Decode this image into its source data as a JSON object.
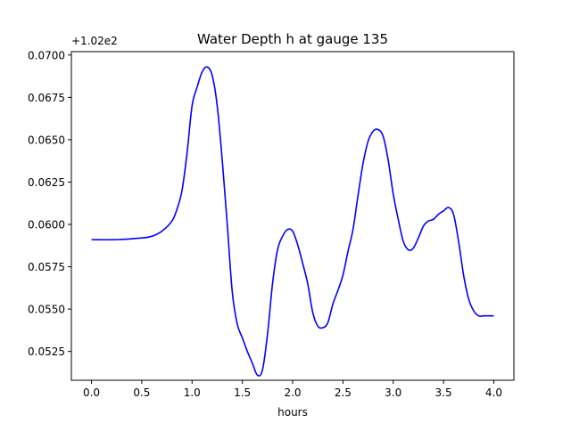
{
  "chart_data": {
    "type": "line",
    "title": "Water Depth h at gauge 135",
    "xlabel": "hours",
    "ylabel": "",
    "offset_label": "+1.02e2",
    "xlim": [
      -0.2,
      4.2
    ],
    "ylim": [
      0.0508,
      0.0702
    ],
    "x_ticks": [
      0.0,
      0.5,
      1.0,
      1.5,
      2.0,
      2.5,
      3.0,
      3.5,
      4.0
    ],
    "x_tick_labels": [
      "0.0",
      "0.5",
      "1.0",
      "1.5",
      "2.0",
      "2.5",
      "3.0",
      "3.5",
      "4.0"
    ],
    "y_ticks": [
      0.0525,
      0.055,
      0.0575,
      0.06,
      0.0625,
      0.065,
      0.0675,
      0.07
    ],
    "y_tick_labels": [
      "0.0525",
      "0.0550",
      "0.0575",
      "0.0600",
      "0.0625",
      "0.0650",
      "0.0675",
      "0.0700"
    ],
    "grid": false,
    "series": [
      {
        "color": "#0000ff",
        "x": [
          0.0,
          0.25,
          0.5,
          0.6,
          0.7,
          0.8,
          0.85,
          0.9,
          0.95,
          1.0,
          1.05,
          1.1,
          1.15,
          1.2,
          1.25,
          1.3,
          1.35,
          1.4,
          1.45,
          1.5,
          1.55,
          1.6,
          1.65,
          1.7,
          1.75,
          1.8,
          1.85,
          1.9,
          1.95,
          2.0,
          2.05,
          2.1,
          2.15,
          2.2,
          2.25,
          2.3,
          2.35,
          2.4,
          2.45,
          2.5,
          2.55,
          2.6,
          2.65,
          2.7,
          2.75,
          2.8,
          2.85,
          2.9,
          2.95,
          3.0,
          3.05,
          3.1,
          3.15,
          3.2,
          3.25,
          3.3,
          3.35,
          3.4,
          3.45,
          3.5,
          3.55,
          3.6,
          3.65,
          3.7,
          3.75,
          3.8,
          3.85,
          3.9,
          3.95,
          4.0
        ],
        "y": [
          0.0591,
          0.0591,
          0.0592,
          0.0593,
          0.0596,
          0.0602,
          0.0609,
          0.062,
          0.0642,
          0.067,
          0.0681,
          0.069,
          0.0693,
          0.0688,
          0.067,
          0.0638,
          0.06,
          0.056,
          0.0541,
          0.0533,
          0.0525,
          0.0518,
          0.0511,
          0.0514,
          0.0535,
          0.0565,
          0.0585,
          0.0593,
          0.0597,
          0.0596,
          0.0588,
          0.0577,
          0.0565,
          0.0548,
          0.054,
          0.0539,
          0.0542,
          0.0553,
          0.0561,
          0.057,
          0.0584,
          0.0597,
          0.0617,
          0.0636,
          0.0649,
          0.0655,
          0.0656,
          0.0652,
          0.0638,
          0.0618,
          0.0603,
          0.059,
          0.0585,
          0.0586,
          0.0592,
          0.0599,
          0.0602,
          0.0603,
          0.0606,
          0.0608,
          0.061,
          0.0606,
          0.059,
          0.057,
          0.0556,
          0.0549,
          0.0546,
          0.0546,
          0.0546,
          0.0546
        ]
      }
    ]
  }
}
